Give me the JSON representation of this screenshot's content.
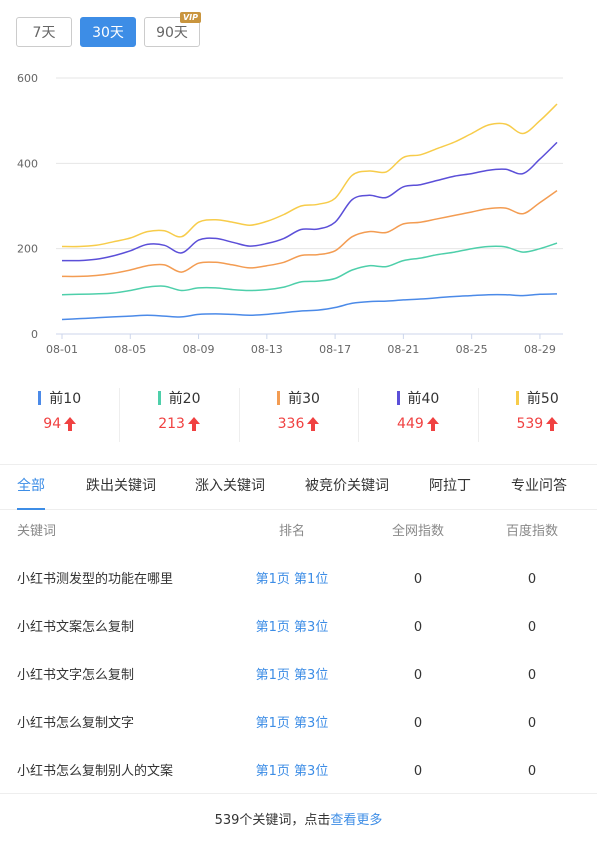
{
  "range_tabs": [
    {
      "label": "7天",
      "active": false
    },
    {
      "label": "30天",
      "active": true
    },
    {
      "label": "90天",
      "active": false,
      "badge": "VIP"
    }
  ],
  "chart_data": {
    "type": "line",
    "x": [
      "08-01",
      "08-02",
      "08-03",
      "08-04",
      "08-05",
      "08-06",
      "08-07",
      "08-08",
      "08-09",
      "08-10",
      "08-11",
      "08-12",
      "08-13",
      "08-14",
      "08-15",
      "08-16",
      "08-17",
      "08-18",
      "08-19",
      "08-20",
      "08-21",
      "08-22",
      "08-23",
      "08-24",
      "08-25",
      "08-26",
      "08-27",
      "08-28",
      "08-29",
      "08-30"
    ],
    "xticks": [
      "08-01",
      "08-05",
      "08-09",
      "08-13",
      "08-17",
      "08-21",
      "08-25",
      "08-29"
    ],
    "ylim": [
      0,
      600
    ],
    "yticks": [
      0,
      200,
      400,
      600
    ],
    "grid": true,
    "series": [
      {
        "name": "前10",
        "color": "#4b8ae8",
        "values": [
          34,
          36,
          38,
          40,
          42,
          44,
          42,
          40,
          46,
          47,
          46,
          44,
          46,
          50,
          54,
          56,
          62,
          72,
          76,
          77,
          80,
          82,
          85,
          88,
          90,
          92,
          92,
          90,
          93,
          94
        ]
      },
      {
        "name": "前20",
        "color": "#4ecfaa",
        "values": [
          92,
          93,
          94,
          96,
          102,
          110,
          112,
          102,
          108,
          108,
          104,
          102,
          104,
          110,
          122,
          124,
          130,
          150,
          160,
          158,
          172,
          178,
          186,
          192,
          200,
          205,
          204,
          192,
          200,
          213
        ]
      },
      {
        "name": "前30",
        "color": "#f39c52",
        "values": [
          135,
          135,
          137,
          142,
          150,
          160,
          162,
          145,
          166,
          168,
          162,
          155,
          160,
          168,
          184,
          186,
          195,
          228,
          240,
          238,
          258,
          262,
          270,
          278,
          286,
          294,
          295,
          282,
          308,
          336
        ]
      },
      {
        "name": "前40",
        "color": "#5b4fd8",
        "values": [
          172,
          172,
          175,
          183,
          195,
          210,
          208,
          190,
          220,
          224,
          215,
          206,
          212,
          224,
          245,
          246,
          262,
          315,
          325,
          320,
          345,
          350,
          360,
          370,
          376,
          384,
          386,
          376,
          410,
          449
        ]
      },
      {
        "name": "前50",
        "color": "#f7cc4a",
        "values": [
          205,
          205,
          208,
          216,
          225,
          240,
          242,
          228,
          262,
          268,
          262,
          255,
          264,
          280,
          300,
          304,
          318,
          372,
          382,
          380,
          414,
          420,
          435,
          450,
          470,
          490,
          492,
          470,
          500,
          539
        ]
      }
    ]
  },
  "stats": [
    {
      "label": "前10",
      "value": "94",
      "color": "#4b8ae8"
    },
    {
      "label": "前20",
      "value": "213",
      "color": "#4ecfaa"
    },
    {
      "label": "前30",
      "value": "336",
      "color": "#f39c52"
    },
    {
      "label": "前40",
      "value": "449",
      "color": "#5b4fd8"
    },
    {
      "label": "前50",
      "value": "539",
      "color": "#f7cc4a"
    }
  ],
  "tabs": [
    {
      "label": "全部",
      "active": true
    },
    {
      "label": "跌出关键词"
    },
    {
      "label": "涨入关键词"
    },
    {
      "label": "被竞价关键词"
    },
    {
      "label": "阿拉丁"
    },
    {
      "label": "专业问答"
    }
  ],
  "table": {
    "headers": [
      "关键词",
      "排名",
      "全网指数",
      "百度指数"
    ],
    "rows": [
      {
        "keyword": "小红书测发型的功能在哪里",
        "rank": "第1页 第1位",
        "total_index": "0",
        "baidu_index": "0"
      },
      {
        "keyword": "小红书文案怎么复制",
        "rank": "第1页 第3位",
        "total_index": "0",
        "baidu_index": "0"
      },
      {
        "keyword": "小红书文字怎么复制",
        "rank": "第1页 第3位",
        "total_index": "0",
        "baidu_index": "0"
      },
      {
        "keyword": "小红书怎么复制文字",
        "rank": "第1页 第3位",
        "total_index": "0",
        "baidu_index": "0"
      },
      {
        "keyword": "小红书怎么复制别人的文案",
        "rank": "第1页 第3位",
        "total_index": "0",
        "baidu_index": "0"
      }
    ]
  },
  "footer": {
    "text": "539个关键词，点击",
    "link": "查看更多"
  }
}
